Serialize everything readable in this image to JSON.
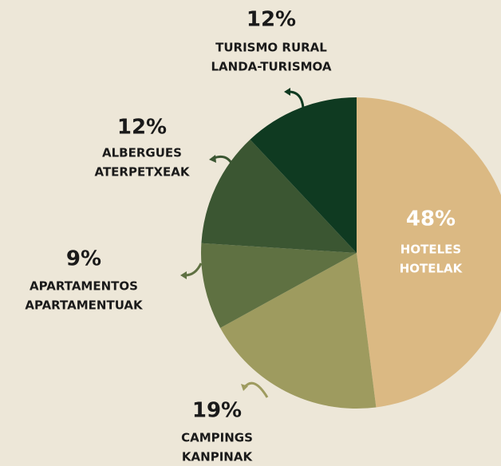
{
  "chart_data": {
    "type": "pie",
    "categories": [
      [
        "HOTELES",
        "HOTELAK"
      ],
      [
        "CAMPINGS",
        "KANPINAK"
      ],
      [
        "APARTAMENTOS",
        "APARTAMENTUAK"
      ],
      [
        "ALBERGUES",
        "ATERPETXEAK"
      ],
      [
        "TURISMO RURAL",
        "LANDA-TURISMOA"
      ]
    ],
    "values": [
      48,
      19,
      9,
      12,
      12
    ],
    "value_labels": [
      "48%",
      "19%",
      "9%",
      "12%",
      "12%"
    ],
    "colors": [
      "#dbb983",
      "#9e9b5f",
      "#5f7142",
      "#3b5632",
      "#0f3a21"
    ]
  }
}
